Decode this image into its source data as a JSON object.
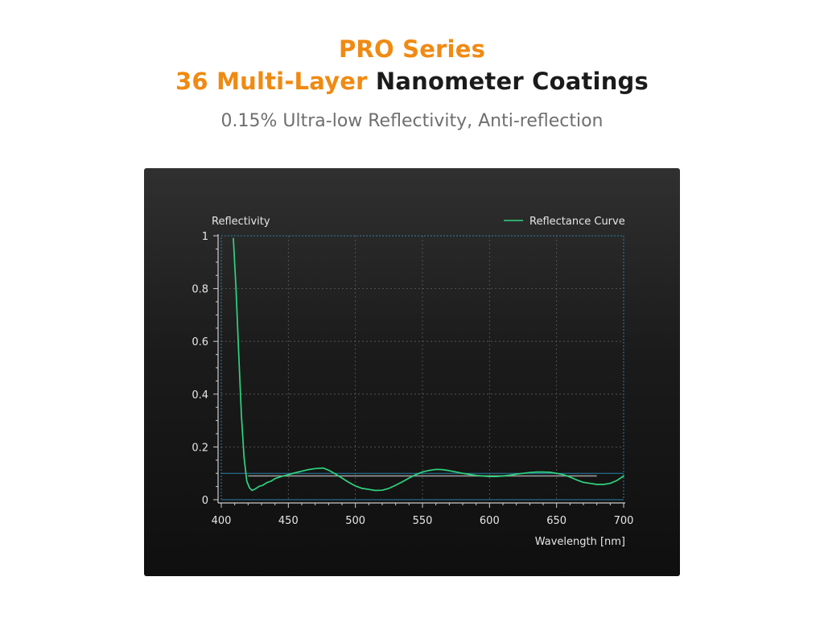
{
  "header": {
    "line1": "PRO Series",
    "line2_accent": "36 Multi-Layer",
    "line2_rest": "Nanometer Coatings",
    "subtitle": "0.15% Ultra-low Reflectivity, Anti-reflection"
  },
  "colors": {
    "accent": "#f08a12",
    "title_dark": "#1b1b1b",
    "subtitle_gray": "#6f6f6f",
    "curve": "#2fd47e",
    "reference_line": "#9a9a9a",
    "frame": "#2a7fa8"
  },
  "chart_data": {
    "type": "line",
    "ylabel": "Reflectivity",
    "xlabel": "Wavelength [nm]",
    "xlim": [
      400,
      700
    ],
    "ylim": [
      0,
      1
    ],
    "x_ticks": [
      400,
      450,
      500,
      550,
      600,
      650,
      700
    ],
    "x_tick_labels": [
      "400",
      "450",
      "500",
      "550",
      "600",
      "650",
      "700"
    ],
    "y_ticks": [
      0,
      0.2,
      0.4,
      0.6,
      0.8,
      1
    ],
    "y_tick_labels": [
      "0",
      "0.2",
      "0.4",
      "0.6",
      "0.8",
      "1"
    ],
    "grid": true,
    "legend_position": "top-right",
    "series": [
      {
        "name": "Reflectance Curve",
        "x": [
          409,
          411,
          413,
          415,
          417,
          419,
          421,
          423,
          425,
          428,
          431,
          434,
          437,
          440,
          445,
          450,
          455,
          460,
          465,
          470,
          476,
          480,
          485,
          490,
          495,
          500,
          505,
          510,
          515,
          520,
          525,
          530,
          535,
          540,
          545,
          550,
          555,
          560,
          565,
          570,
          575,
          580,
          585,
          590,
          595,
          600,
          605,
          610,
          615,
          620,
          625,
          630,
          635,
          640,
          645,
          650,
          655,
          660,
          665,
          670,
          675,
          680,
          685,
          690,
          695,
          700
        ],
        "values": [
          0.99,
          0.8,
          0.55,
          0.32,
          0.16,
          0.07,
          0.045,
          0.035,
          0.04,
          0.05,
          0.055,
          0.065,
          0.07,
          0.08,
          0.088,
          0.095,
          0.102,
          0.108,
          0.114,
          0.118,
          0.12,
          0.112,
          0.098,
          0.082,
          0.066,
          0.052,
          0.043,
          0.039,
          0.035,
          0.036,
          0.043,
          0.055,
          0.068,
          0.082,
          0.095,
          0.105,
          0.111,
          0.115,
          0.114,
          0.11,
          0.105,
          0.1,
          0.096,
          0.092,
          0.09,
          0.088,
          0.088,
          0.09,
          0.093,
          0.097,
          0.1,
          0.103,
          0.105,
          0.105,
          0.104,
          0.1,
          0.095,
          0.086,
          0.075,
          0.066,
          0.062,
          0.058,
          0.058,
          0.062,
          0.073,
          0.09
        ]
      }
    ],
    "reference_line": {
      "x": [
        420,
        680
      ],
      "y": 0.09
    }
  }
}
